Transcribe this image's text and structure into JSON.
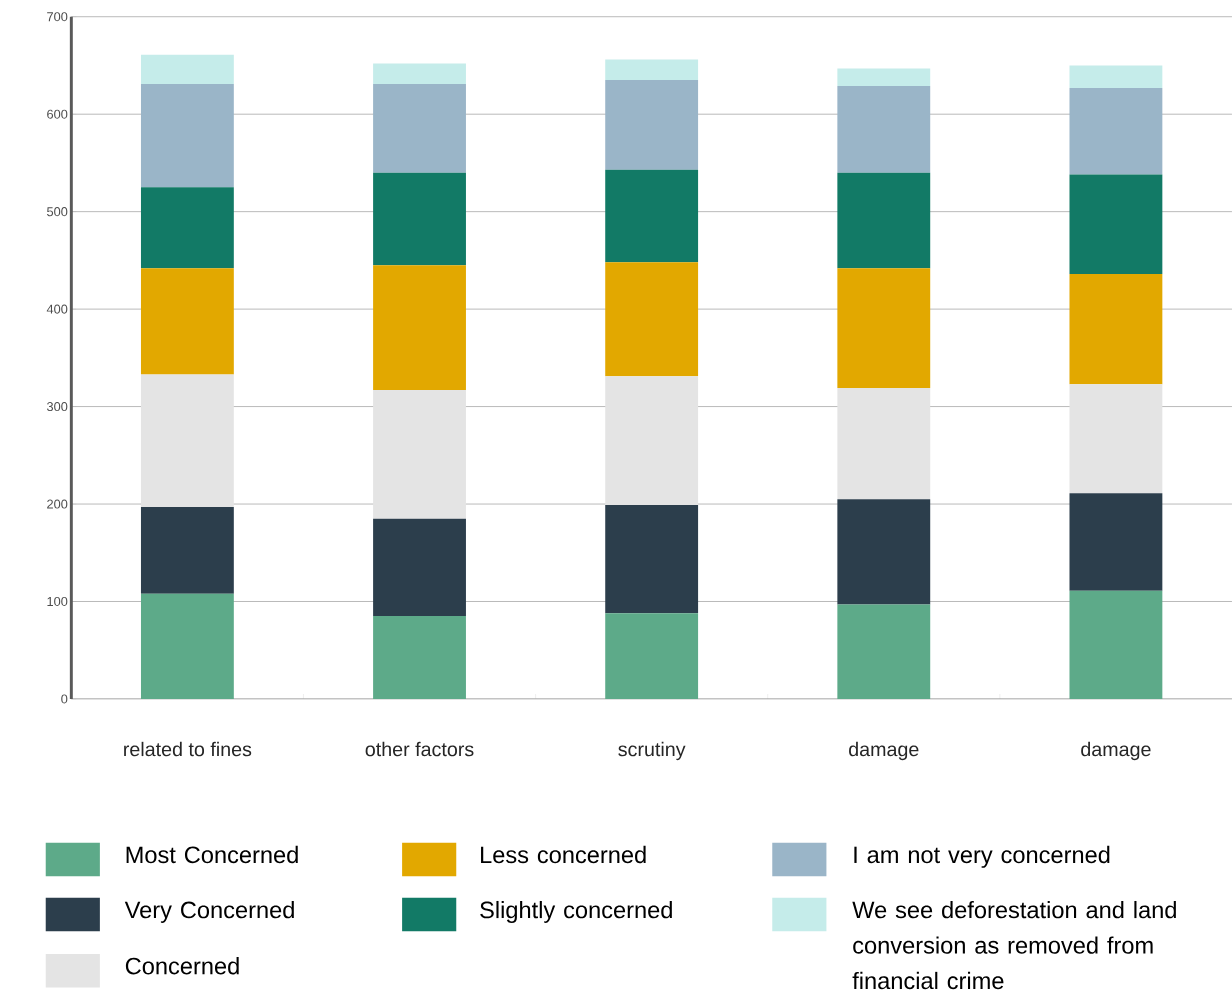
{
  "chart_data": {
    "type": "bar",
    "stacked": true,
    "categories": [
      "related to fines",
      "other factors",
      "scrutiny",
      "damage",
      "damage"
    ],
    "series": [
      {
        "name": "Most Concerned",
        "color": "#5daa89",
        "values": [
          108,
          85,
          88,
          97,
          111
        ]
      },
      {
        "name": "Very Concerned",
        "color": "#2c3e4c",
        "values": [
          89,
          100,
          111,
          108,
          100
        ]
      },
      {
        "name": "Concerned",
        "color": "#e4e4e4",
        "values": [
          136,
          132,
          132,
          114,
          112
        ]
      },
      {
        "name": "Less concerned",
        "color": "#e2a800",
        "values": [
          109,
          128,
          117,
          123,
          113
        ]
      },
      {
        "name": "Slightly concerned",
        "color": "#127a66",
        "values": [
          83,
          95,
          95,
          98,
          102
        ]
      },
      {
        "name": "I am not very concerned",
        "color": "#9ab5c8",
        "values": [
          106,
          91,
          92,
          89,
          89
        ]
      },
      {
        "name": "We see deforestation and land conversion as removed from financial crime",
        "color": "#c5ecea",
        "values": [
          30,
          21,
          21,
          18,
          23
        ]
      }
    ],
    "ylim": [
      0,
      700
    ],
    "yticks": [
      0,
      100,
      200,
      300,
      400,
      500,
      600,
      700
    ],
    "grid": "y",
    "legend": "bottom"
  }
}
